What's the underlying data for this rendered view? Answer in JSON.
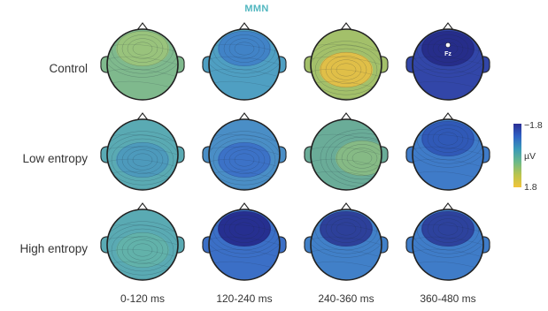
{
  "figure": {
    "title": "MMN",
    "rows": [
      "Control",
      "Low entropy",
      "High entropy"
    ],
    "columns": [
      "0-120 ms",
      "120-240 ms",
      "240-360 ms",
      "360-480 ms"
    ],
    "electrode_label": "Fz",
    "colorbar": {
      "label": "µV",
      "min_label": "−1.8",
      "max_label": "1.8",
      "colors": [
        "#2b2e94",
        "#2f62c4",
        "#3a9ab8",
        "#6ab98a",
        "#b8c44e",
        "#f2c43a"
      ]
    },
    "maps": [
      [
        {
          "color": "#7fb98d",
          "hot": "#9cc47a",
          "hot_pos": "top"
        },
        {
          "color": "#4f9fc2",
          "hot": "#3f7fc8",
          "hot_pos": "top"
        },
        {
          "color": "#a3c06a",
          "hot": "#e7bf45",
          "hot_pos": "middle"
        },
        {
          "color": "#3246a8",
          "hot": "#252a86",
          "hot_pos": "top"
        }
      ],
      [
        {
          "color": "#5aaab3",
          "hot": "#4b98bd",
          "hot_pos": "middle"
        },
        {
          "color": "#4a8ec6",
          "hot": "#3b6fc6",
          "hot_pos": "middle"
        },
        {
          "color": "#6aac98",
          "hot": "#89bb83",
          "hot_pos": "right"
        },
        {
          "color": "#3f7bc8",
          "hot": "#2f55b5",
          "hot_pos": "top"
        }
      ],
      [
        {
          "color": "#5aaab3",
          "hot": "#63b2a8",
          "hot_pos": "middle"
        },
        {
          "color": "#3b6fc6",
          "hot": "#25288a",
          "hot_pos": "top"
        },
        {
          "color": "#4180c8",
          "hot": "#2b3895",
          "hot_pos": "top"
        },
        {
          "color": "#3f7cc8",
          "hot": "#2b3c98",
          "hot_pos": "top"
        }
      ]
    ]
  }
}
